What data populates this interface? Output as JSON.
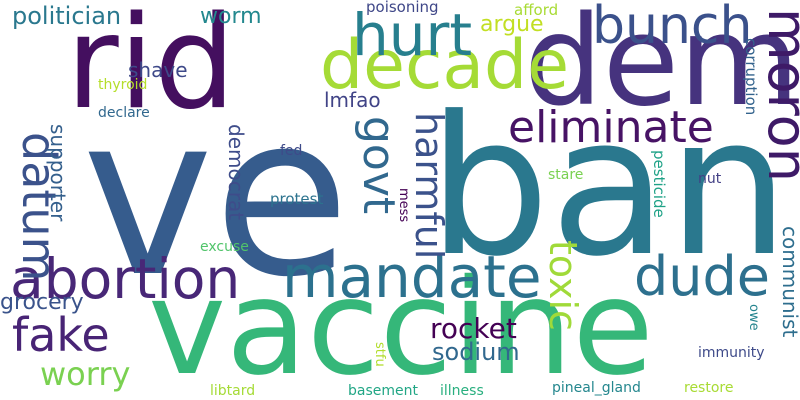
{
  "palette": {
    "dark_purple": "#46135f",
    "indigo": "#3f3f8a",
    "blue": "#355f8d",
    "teal": "#277f8e",
    "green_teal": "#21918c",
    "green": "#3bbb75",
    "lime": "#a2da37",
    "pale_lime": "#c0df25"
  },
  "words": [
    {
      "text": "ve",
      "color": "#365c8d"
    },
    {
      "text": "ban",
      "color": "#2a788e"
    },
    {
      "text": "vaccine",
      "color": "#35b779"
    },
    {
      "text": "rid",
      "color": "#440f5f"
    },
    {
      "text": "dem",
      "color": "#46337e"
    },
    {
      "text": "decade",
      "color": "#a5db36"
    },
    {
      "text": "hurt",
      "color": "#277f8e"
    },
    {
      "text": "bunch",
      "color": "#3b518b"
    },
    {
      "text": "moron",
      "color": "#3e1a67"
    },
    {
      "text": "mandate",
      "color": "#2c718e"
    },
    {
      "text": "abortion",
      "color": "#482777"
    },
    {
      "text": "dude",
      "color": "#2d708e"
    },
    {
      "text": "eliminate",
      "color": "#471365"
    },
    {
      "text": "datum",
      "color": "#3b528b"
    },
    {
      "text": "govt",
      "color": "#31688e"
    },
    {
      "text": "harmful",
      "color": "#3b528b"
    },
    {
      "text": "toxic",
      "color": "#a0da39"
    },
    {
      "text": "fake",
      "color": "#482475"
    },
    {
      "text": "worry",
      "color": "#7ad151"
    },
    {
      "text": "rocket",
      "color": "#440154"
    },
    {
      "text": "sodium",
      "color": "#31688e"
    },
    {
      "text": "politician",
      "color": "#2a788e"
    },
    {
      "text": "worm",
      "color": "#23888e"
    },
    {
      "text": "argue",
      "color": "#c2df23"
    },
    {
      "text": "shave",
      "color": "#3e4989"
    },
    {
      "text": "lmfao",
      "color": "#414487"
    },
    {
      "text": "democrat",
      "color": "#3e4c8a"
    },
    {
      "text": "supporter",
      "color": "#35608d"
    },
    {
      "text": "grocery",
      "color": "#3a538b"
    },
    {
      "text": "communist",
      "color": "#2e6e8e"
    },
    {
      "text": "poisoning",
      "color": "#3f4788"
    },
    {
      "text": "afford",
      "color": "#a8db34"
    },
    {
      "text": "corruption",
      "color": "#33638d"
    },
    {
      "text": "thyroid",
      "color": "#b5de2b"
    },
    {
      "text": "declare",
      "color": "#31688e"
    },
    {
      "text": "fed",
      "color": "#3e4a89"
    },
    {
      "text": "protest",
      "color": "#2c738e"
    },
    {
      "text": "mess",
      "color": "#440154"
    },
    {
      "text": "pesticide",
      "color": "#1fa287"
    },
    {
      "text": "stare",
      "color": "#7ad151"
    },
    {
      "text": "nut",
      "color": "#423f85"
    },
    {
      "text": "excuse",
      "color": "#50c46a"
    },
    {
      "text": "immunity",
      "color": "#3e4a89"
    },
    {
      "text": "owe",
      "color": "#25848e"
    },
    {
      "text": "stfu",
      "color": "#b2dd2d"
    },
    {
      "text": "libtard",
      "color": "#a5db36"
    },
    {
      "text": "basement",
      "color": "#21a685"
    },
    {
      "text": "illness",
      "color": "#29af7f"
    },
    {
      "text": "pineal_gland",
      "color": "#24878e"
    },
    {
      "text": "restore",
      "color": "#a8db34"
    }
  ]
}
